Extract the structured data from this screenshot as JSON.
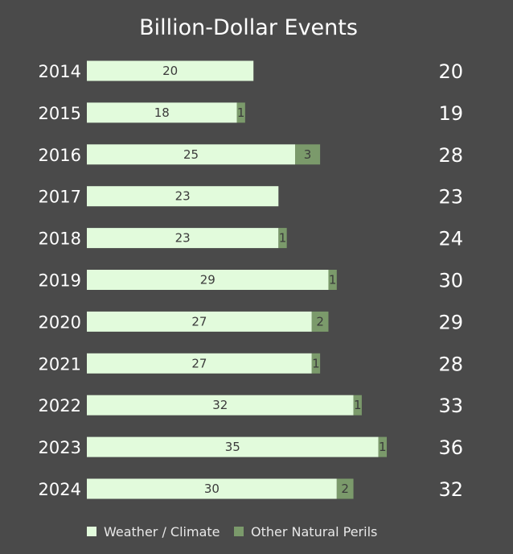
{
  "chart_data": {
    "type": "bar",
    "orientation": "horizontal",
    "stacked": true,
    "title": "Billion-Dollar Events",
    "categories": [
      "2014",
      "2015",
      "2016",
      "2017",
      "2018",
      "2019",
      "2020",
      "2021",
      "2022",
      "2023",
      "2024"
    ],
    "series": [
      {
        "name": "Weather / Climate",
        "color": "#e2fbdc",
        "values": [
          20,
          18,
          25,
          23,
          23,
          29,
          27,
          27,
          32,
          35,
          30
        ]
      },
      {
        "name": "Other Natural Perils",
        "color": "#7b9a6b",
        "values": [
          0,
          1,
          3,
          0,
          1,
          1,
          2,
          1,
          1,
          1,
          2
        ]
      }
    ],
    "totals": [
      20,
      19,
      28,
      23,
      24,
      30,
      29,
      28,
      33,
      36,
      32
    ],
    "xlim": [
      0,
      36
    ],
    "grid": false,
    "legend_position": "bottom-center",
    "colors": {
      "background": "#4a4a4a",
      "text": "#ffffff",
      "bar_label": "#3b3b3b"
    }
  }
}
